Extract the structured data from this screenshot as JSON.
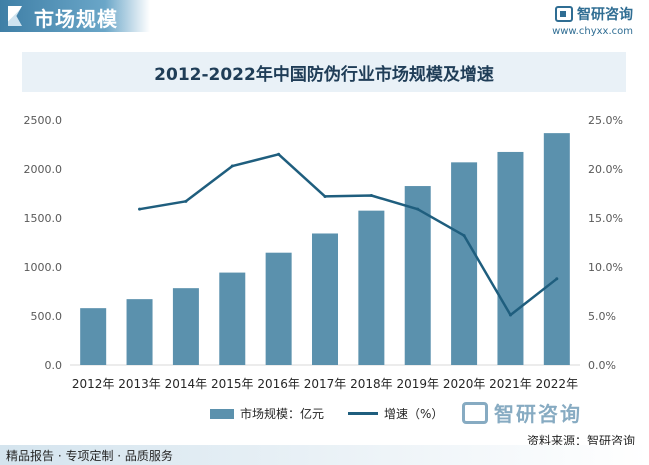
{
  "header": {
    "title": "市场规模",
    "brand_name": "智研咨询",
    "brand_url": "www.chyxx.com"
  },
  "chart_data": {
    "type": "bar",
    "title": "2012-2022年中国防伪行业市场规模及增速",
    "categories": [
      "2012年",
      "2013年",
      "2014年",
      "2015年",
      "2016年",
      "2017年",
      "2018年",
      "2019年",
      "2020年",
      "2021年",
      "2022年"
    ],
    "series": [
      {
        "name": "市场规模：亿元",
        "type": "bar",
        "axis": "left",
        "color": "#5b91ad",
        "values": [
          580,
          672,
          784,
          943,
          1146,
          1342,
          1575,
          1826,
          2068,
          2174,
          2366
        ]
      },
      {
        "name": "增速（%）",
        "type": "line",
        "axis": "right",
        "color": "#1f5e7e",
        "values": [
          null,
          15.9,
          16.7,
          20.3,
          21.5,
          17.2,
          17.3,
          15.9,
          13.2,
          5.1,
          8.8
        ]
      }
    ],
    "y_left": {
      "min": 0,
      "max": 2500,
      "ticks": [
        "0.0",
        "500.0",
        "1000.0",
        "1500.0",
        "2000.0",
        "2500.0"
      ]
    },
    "y_right": {
      "min": 0,
      "max": 25,
      "ticks": [
        "0.0%",
        "5.0%",
        "10.0%",
        "15.0%",
        "20.0%",
        "25.0%"
      ]
    },
    "grid": false,
    "legend_position": "bottom"
  },
  "watermark": {
    "name": "智研咨询"
  },
  "source": "资料来源：智研咨询",
  "footer": "精品报告 · 专项定制 · 品质服务"
}
